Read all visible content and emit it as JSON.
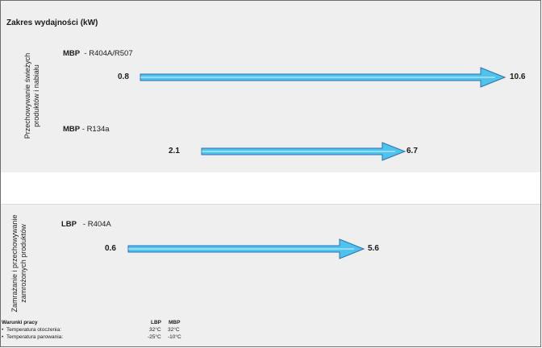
{
  "title": "Zakres wydajności (kW)",
  "sections": [
    {
      "label_lines": [
        "Przechowywanie świeżych",
        "produktów i nabiału"
      ]
    },
    {
      "label_lines": [
        "Zamrażanie i przechowywanie",
        "zamrożonych produktów"
      ]
    }
  ],
  "chart_data": {
    "type": "range-arrows",
    "title": "Zakres wydajności (kW)",
    "series": [
      {
        "model": "MBP",
        "refrigerant": "- R404A/R507",
        "min": 0.8,
        "max": 10.6,
        "min_label": "0.8",
        "max_label": "10.6"
      },
      {
        "model": "MBP",
        "refrigerant": "- R134a",
        "min": 2.1,
        "max": 6.7,
        "min_label": "2.1",
        "max_label": "6.7"
      },
      {
        "model": "LBP",
        "refrigerant": "- R404A",
        "min": 0.6,
        "max": 5.6,
        "min_label": "0.6",
        "max_label": "5.6"
      }
    ]
  },
  "conditions": {
    "title": "Warunki pracy",
    "col1": "LBP",
    "col2": "MBP",
    "rows": [
      {
        "label": "Temperatura otoczenia:",
        "v1": "32°C",
        "v2": "32°C"
      },
      {
        "label": "Temperatura parowania:",
        "v1": "-25°C",
        "v2": "-10°C"
      }
    ]
  },
  "colors": {
    "arrow_fill": "#4dc3ee",
    "arrow_stroke": "#2f6fb5",
    "band": "#efefef"
  }
}
